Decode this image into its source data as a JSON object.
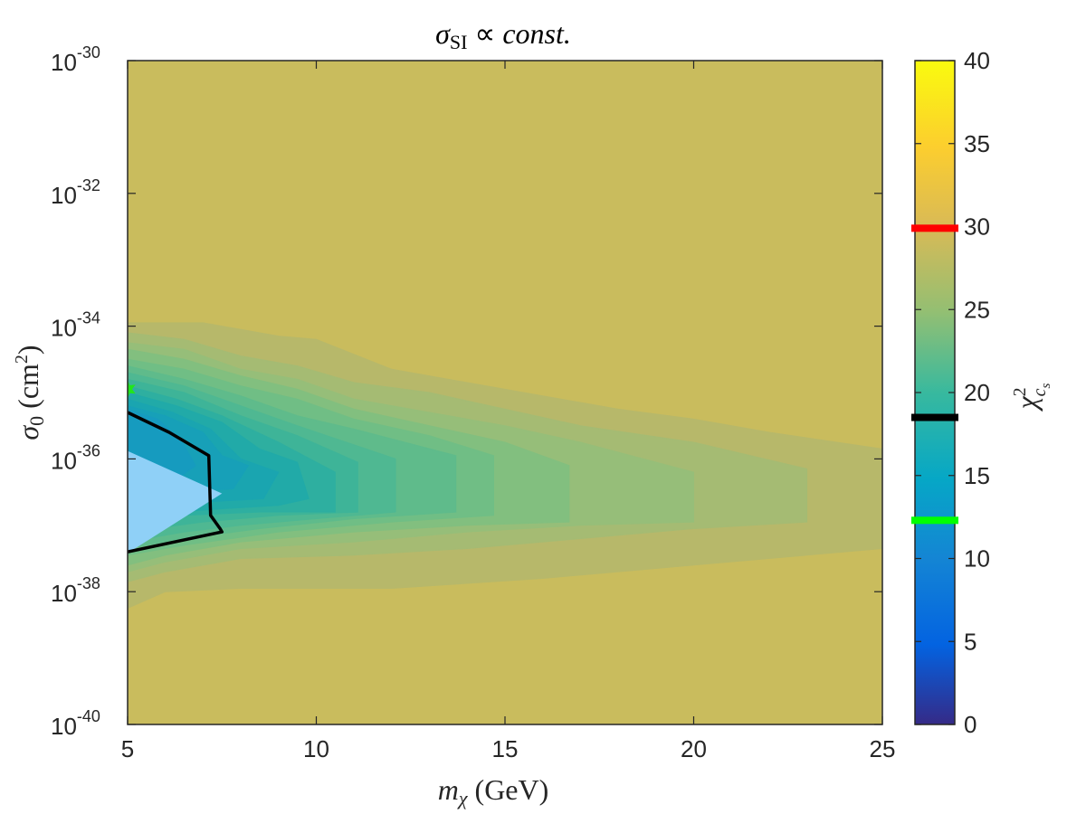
{
  "chart_data": {
    "type": "heatmap",
    "title": {
      "symbol": "σ",
      "sub": "SI",
      "rest": " ∝ ",
      "emph": "const."
    },
    "xlabel": {
      "symbol": "m",
      "sub": "χ",
      "rest": " (GeV)"
    },
    "ylabel": {
      "symbol": "σ",
      "sub": "0",
      "rest": " (cm",
      "sup": "2",
      "close": ")"
    },
    "colorbar_label": {
      "symbol": "χ",
      "sup": "2",
      "sub": "c",
      "subsub": "s"
    },
    "xlim": [
      5,
      25
    ],
    "ylim_log10": [
      -40,
      -30
    ],
    "x_ticks": [
      "5",
      "10",
      "15",
      "20",
      "25"
    ],
    "x_tick_values": [
      5,
      10,
      15,
      20,
      25
    ],
    "y_ticks": [
      {
        "base": "10",
        "exp": "-30",
        "value": -30
      },
      {
        "base": "10",
        "exp": "-32",
        "value": -32
      },
      {
        "base": "10",
        "exp": "-34",
        "value": -34
      },
      {
        "base": "10",
        "exp": "-36",
        "value": -36
      },
      {
        "base": "10",
        "exp": "-38",
        "value": -38
      },
      {
        "base": "10",
        "exp": "-40",
        "value": -40
      }
    ],
    "colorbar_range": [
      0,
      40
    ],
    "colorbar_ticks": [
      "0",
      "5",
      "10",
      "15",
      "20",
      "25",
      "30",
      "35",
      "40"
    ],
    "colorbar_tick_values": [
      0,
      5,
      10,
      15,
      20,
      25,
      30,
      35,
      40
    ],
    "colorbar_markers": [
      {
        "value": 29.9,
        "color": "#ff0000"
      },
      {
        "value": 18.5,
        "color": "#000000"
      },
      {
        "value": 12.3,
        "color": "#00ff00"
      }
    ],
    "background_level": 29.2,
    "contours": [
      {
        "level": 27.5,
        "color": "#b7b86a",
        "points": [
          [
            5,
            -33.95
          ],
          [
            7,
            -33.95
          ],
          [
            8,
            -34.05
          ],
          [
            9,
            -34.15
          ],
          [
            10,
            -34.2
          ],
          [
            12,
            -34.65
          ],
          [
            14,
            -34.85
          ],
          [
            16,
            -35.05
          ],
          [
            18,
            -35.25
          ],
          [
            20,
            -35.4
          ],
          [
            22,
            -35.6
          ],
          [
            25,
            -35.85
          ],
          [
            25,
            -37.35
          ],
          [
            20,
            -37.6
          ],
          [
            16,
            -37.8
          ],
          [
            12,
            -37.95
          ],
          [
            8,
            -37.95
          ],
          [
            6,
            -38.0
          ],
          [
            5,
            -38.25
          ]
        ]
      },
      {
        "level": 26,
        "color": "#a5bb73",
        "points": [
          [
            5,
            -34.1
          ],
          [
            6.5,
            -34.2
          ],
          [
            8,
            -34.45
          ],
          [
            9.5,
            -34.6
          ],
          [
            11,
            -34.85
          ],
          [
            13,
            -35.0
          ],
          [
            15,
            -35.25
          ],
          [
            17,
            -35.5
          ],
          [
            20,
            -35.75
          ],
          [
            23,
            -36.15
          ],
          [
            23,
            -36.95
          ],
          [
            20,
            -37.05
          ],
          [
            17,
            -37.2
          ],
          [
            14,
            -37.35
          ],
          [
            11,
            -37.45
          ],
          [
            8,
            -37.5
          ],
          [
            6,
            -37.7
          ],
          [
            5,
            -37.85
          ]
        ]
      },
      {
        "level": 25,
        "color": "#96be79",
        "points": [
          [
            5,
            -34.25
          ],
          [
            6.5,
            -34.35
          ],
          [
            8,
            -34.65
          ],
          [
            9.5,
            -34.8
          ],
          [
            11,
            -35.1
          ],
          [
            13,
            -35.3
          ],
          [
            15,
            -35.5
          ],
          [
            17,
            -35.75
          ],
          [
            20,
            -36.2
          ],
          [
            20,
            -36.95
          ],
          [
            17,
            -37.0
          ],
          [
            14,
            -37.1
          ],
          [
            11,
            -37.25
          ],
          [
            8,
            -37.35
          ],
          [
            6,
            -37.55
          ],
          [
            5,
            -37.7
          ]
        ]
      },
      {
        "level": 24,
        "color": "#82bf7f",
        "points": [
          [
            5,
            -34.35
          ],
          [
            6.5,
            -34.5
          ],
          [
            8,
            -34.75
          ],
          [
            9.5,
            -34.95
          ],
          [
            11,
            -35.25
          ],
          [
            13,
            -35.5
          ],
          [
            15,
            -35.75
          ],
          [
            16.7,
            -36.1
          ],
          [
            16.7,
            -36.95
          ],
          [
            14,
            -37.0
          ],
          [
            11,
            -37.1
          ],
          [
            8,
            -37.25
          ],
          [
            6,
            -37.45
          ],
          [
            5,
            -37.6
          ]
        ]
      },
      {
        "level": 23,
        "color": "#70be85",
        "points": [
          [
            5,
            -34.5
          ],
          [
            6.5,
            -34.65
          ],
          [
            8,
            -34.9
          ],
          [
            9.5,
            -35.1
          ],
          [
            11,
            -35.4
          ],
          [
            13,
            -35.65
          ],
          [
            14.7,
            -35.95
          ],
          [
            14.7,
            -36.85
          ],
          [
            12,
            -36.95
          ],
          [
            9,
            -37.1
          ],
          [
            6.5,
            -37.3
          ],
          [
            5,
            -37.45
          ]
        ]
      },
      {
        "level": 22,
        "color": "#5fbb8b",
        "points": [
          [
            5,
            -34.6
          ],
          [
            6.5,
            -34.8
          ],
          [
            8,
            -35.05
          ],
          [
            9.5,
            -35.35
          ],
          [
            11,
            -35.55
          ],
          [
            13.7,
            -35.95
          ],
          [
            13.7,
            -36.8
          ],
          [
            11,
            -36.9
          ],
          [
            8.5,
            -37.05
          ],
          [
            6.5,
            -37.2
          ],
          [
            5,
            -37.35
          ]
        ]
      },
      {
        "level": 21,
        "color": "#4fb892",
        "points": [
          [
            5,
            -34.7
          ],
          [
            6.5,
            -34.9
          ],
          [
            8,
            -35.2
          ],
          [
            9.5,
            -35.5
          ],
          [
            12.1,
            -36.0
          ],
          [
            12.1,
            -36.8
          ],
          [
            10,
            -36.9
          ],
          [
            8,
            -37.0
          ],
          [
            6.5,
            -37.1
          ],
          [
            5,
            -37.25
          ]
        ]
      },
      {
        "level": 20,
        "color": "#3eb498",
        "points": [
          [
            5,
            -34.8
          ],
          [
            6.5,
            -35.0
          ],
          [
            8,
            -35.35
          ],
          [
            9.5,
            -35.65
          ],
          [
            11.1,
            -36.05
          ],
          [
            11.1,
            -36.8
          ],
          [
            9,
            -36.85
          ],
          [
            7,
            -36.95
          ],
          [
            5,
            -37.1
          ]
        ]
      },
      {
        "level": 19,
        "color": "#2eafa0",
        "points": [
          [
            5,
            -34.9
          ],
          [
            6.3,
            -35.1
          ],
          [
            7.5,
            -35.35
          ],
          [
            9,
            -35.75
          ],
          [
            10.5,
            -36.2
          ],
          [
            10.5,
            -36.8
          ],
          [
            8.5,
            -36.8
          ],
          [
            6.5,
            -36.85
          ],
          [
            5,
            -37.0
          ]
        ]
      },
      {
        "level": 18,
        "color": "#21aaa8",
        "points": [
          [
            5,
            -35.0
          ],
          [
            6.3,
            -35.2
          ],
          [
            7.5,
            -35.45
          ],
          [
            8.5,
            -35.85
          ],
          [
            9.5,
            -36.05
          ],
          [
            9.8,
            -36.6
          ],
          [
            9,
            -36.7
          ],
          [
            7.5,
            -36.75
          ],
          [
            5,
            -36.85
          ]
        ]
      },
      {
        "level": 17,
        "color": "#1aa5b0",
        "points": [
          [
            5,
            -35.1
          ],
          [
            6.2,
            -35.3
          ],
          [
            7.2,
            -35.55
          ],
          [
            8,
            -36.0
          ],
          [
            9,
            -36.2
          ],
          [
            8.6,
            -36.6
          ],
          [
            7,
            -36.65
          ],
          [
            5,
            -36.75
          ]
        ]
      },
      {
        "level": 16,
        "color": "#17a0b8",
        "points": [
          [
            5,
            -35.2
          ],
          [
            6,
            -35.35
          ],
          [
            7,
            -35.6
          ],
          [
            7.5,
            -35.95
          ],
          [
            8.2,
            -36.1
          ],
          [
            7.8,
            -36.45
          ],
          [
            6.5,
            -36.5
          ],
          [
            5,
            -36.6
          ]
        ]
      },
      {
        "level": 15,
        "color": "#169bbf",
        "points": [
          [
            5,
            -35.25
          ],
          [
            5.8,
            -35.4
          ],
          [
            6.4,
            -35.7
          ],
          [
            6.8,
            -36.1
          ],
          [
            6.2,
            -36.35
          ],
          [
            5,
            -36.45
          ]
        ]
      }
    ],
    "region_line": {
      "color": "#000000",
      "points": [
        [
          5,
          -35.3
        ],
        [
          6.1,
          -35.6
        ],
        [
          7.15,
          -35.95
        ],
        [
          7.2,
          -36.85
        ],
        [
          7.45,
          -37.05
        ],
        [
          7.5,
          -37.1
        ],
        [
          5,
          -37.4
        ]
      ]
    },
    "excluded_triangle": {
      "color": "#8fd0f7",
      "points": [
        [
          5,
          -35.88
        ],
        [
          7.5,
          -36.52
        ],
        [
          5,
          -37.42
        ]
      ]
    },
    "best_fit_marker": {
      "color": "#22e61b",
      "x": 5,
      "y_log10": -34.95
    }
  }
}
